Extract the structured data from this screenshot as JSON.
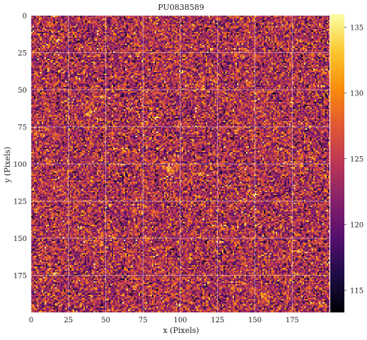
{
  "chart_data": {
    "type": "heatmap",
    "title": "PU0838589",
    "xlabel": "x (Pixels)",
    "ylabel": "y (Pixels)",
    "xlim": [
      0,
      200
    ],
    "ylim": [
      200,
      0
    ],
    "grid": true,
    "colormap": "inferno",
    "color_range": [
      113.3,
      136.0
    ],
    "x_ticks": [
      0,
      25,
      50,
      75,
      100,
      125,
      150,
      175
    ],
    "y_ticks": [
      0,
      25,
      50,
      75,
      100,
      125,
      150,
      175
    ],
    "x_tick_labels": [
      "0",
      "25",
      "50",
      "75",
      "100",
      "125",
      "150",
      "175"
    ],
    "y_tick_labels": [
      "0",
      "25",
      "50",
      "75",
      "100",
      "125",
      "150",
      "175"
    ],
    "colorbar_ticks": [
      115,
      120,
      125,
      130,
      135
    ],
    "colorbar_tick_labels": [
      "115",
      "120",
      "125",
      "130",
      "135"
    ],
    "noise": {
      "mean": 124.0,
      "std": 4.0
    },
    "bright_sources": [
      {
        "x": 39,
        "y": 65,
        "amplitude": 7.0,
        "sigma": 2.2
      },
      {
        "x": 93,
        "y": 102,
        "amplitude": 6.5,
        "sigma": 3.2
      },
      {
        "x": 155,
        "y": 189,
        "amplitude": 7.5,
        "sigma": 2.2
      }
    ]
  }
}
